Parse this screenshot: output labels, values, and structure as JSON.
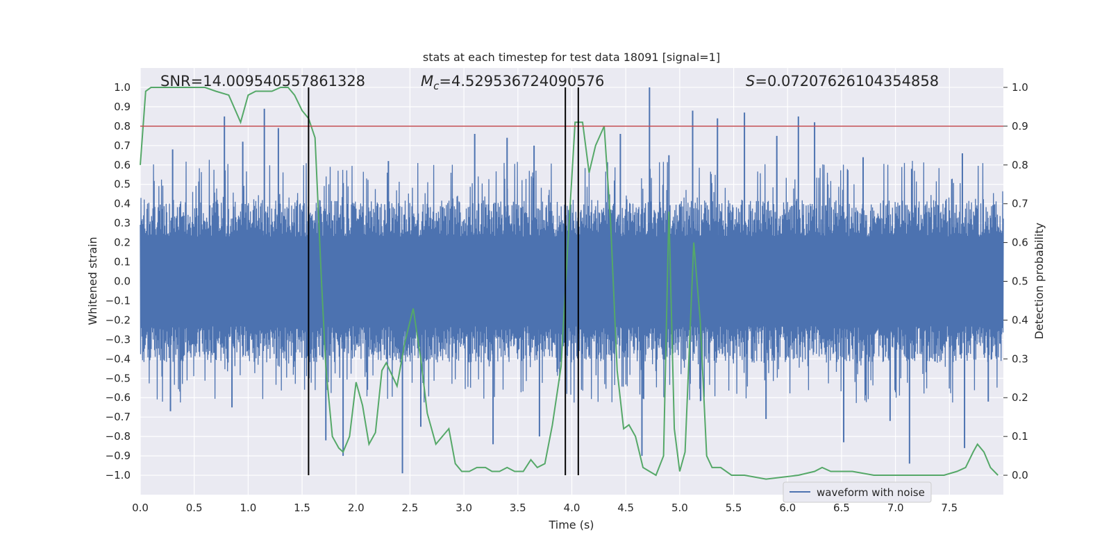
{
  "chart_data": {
    "type": "line",
    "title": "stats at each timestep for test data 18091 [signal=1]",
    "xlabel": "Time (s)",
    "ylabel": "Whitened strain",
    "y2label": "Detection probability",
    "xlim": [
      0.0,
      8.0
    ],
    "ylim": [
      -1.1,
      1.1
    ],
    "y2lim": [
      -0.05,
      1.05
    ],
    "xticks": [
      "0.0",
      "0.5",
      "1.0",
      "1.5",
      "2.0",
      "2.5",
      "3.0",
      "3.5",
      "4.0",
      "4.5",
      "5.0",
      "5.5",
      "6.0",
      "6.5",
      "7.0",
      "7.5"
    ],
    "yticks": [
      "1.0",
      "0.9",
      "0.8",
      "0.7",
      "0.6",
      "0.5",
      "0.4",
      "0.3",
      "0.2",
      "0.1",
      "0.0",
      "−0.1",
      "−0.2",
      "−0.3",
      "−0.4",
      "−0.5",
      "−0.6",
      "−0.7",
      "−0.8",
      "−0.9",
      "−1.0"
    ],
    "y2ticks": [
      "1.0",
      "0.9",
      "0.8",
      "0.7",
      "0.6",
      "0.5",
      "0.4",
      "0.3",
      "0.2",
      "0.1",
      "0.0"
    ],
    "grid": true,
    "legend_position": "lower-right",
    "annotations": {
      "snr": "SNR=14.009540557861328",
      "mc_symbol": "M",
      "mc_sub": "c",
      "mc_value": "=4.529536724090576",
      "s_symbol": "S",
      "s_value": "=0.07207626104354858"
    },
    "threshold": {
      "y2": 0.9,
      "color": "#c44e52"
    },
    "vertical_lines_x": [
      1.56,
      3.94,
      4.06
    ],
    "series": [
      {
        "name": "waveform with noise",
        "color": "#4c72b0",
        "axis": "left",
        "noise_envelope": {
          "typical_abs": 0.42,
          "max_abs": 1.0
        },
        "spikes_up": [
          {
            "x": 0.78,
            "y": 0.85
          },
          {
            "x": 1.15,
            "y": 0.89
          },
          {
            "x": 1.28,
            "y": 0.79
          },
          {
            "x": 3.1,
            "y": 0.76
          },
          {
            "x": 3.4,
            "y": 0.74
          },
          {
            "x": 4.45,
            "y": 0.76
          },
          {
            "x": 4.72,
            "y": 1.0
          },
          {
            "x": 5.12,
            "y": 0.88
          },
          {
            "x": 5.35,
            "y": 0.84
          },
          {
            "x": 5.6,
            "y": 0.87
          },
          {
            "x": 6.1,
            "y": 0.85
          },
          {
            "x": 6.25,
            "y": 0.82
          },
          {
            "x": 0.3,
            "y": 0.68
          },
          {
            "x": 0.95,
            "y": 0.72
          },
          {
            "x": 2.3,
            "y": 0.62
          },
          {
            "x": 3.65,
            "y": 0.7
          },
          {
            "x": 4.9,
            "y": 0.65
          },
          {
            "x": 5.9,
            "y": 0.75
          },
          {
            "x": 6.7,
            "y": 0.64
          },
          {
            "x": 7.15,
            "y": 0.58
          },
          {
            "x": 7.62,
            "y": 0.66
          }
        ],
        "spikes_down": [
          {
            "x": 1.88,
            "y": -0.9
          },
          {
            "x": 2.43,
            "y": -0.99
          },
          {
            "x": 2.6,
            "y": -0.75
          },
          {
            "x": 3.27,
            "y": -0.84
          },
          {
            "x": 3.7,
            "y": -0.8
          },
          {
            "x": 4.65,
            "y": -0.9
          },
          {
            "x": 6.52,
            "y": -0.83
          },
          {
            "x": 7.13,
            "y": -0.94
          },
          {
            "x": 7.64,
            "y": -0.86
          },
          {
            "x": 0.28,
            "y": -0.67
          },
          {
            "x": 0.85,
            "y": -0.65
          },
          {
            "x": 1.72,
            "y": -0.82
          },
          {
            "x": 5.8,
            "y": -0.71
          },
          {
            "x": 6.95,
            "y": -0.72
          },
          {
            "x": 7.86,
            "y": -0.62
          }
        ]
      },
      {
        "name": "detection probability",
        "color": "#55a868",
        "axis": "right",
        "points": [
          [
            0.0,
            0.8
          ],
          [
            0.05,
            0.99
          ],
          [
            0.1,
            1.0
          ],
          [
            0.2,
            1.0
          ],
          [
            0.4,
            1.0
          ],
          [
            0.6,
            1.0
          ],
          [
            0.7,
            0.99
          ],
          [
            0.82,
            0.98
          ],
          [
            0.93,
            0.91
          ],
          [
            1.0,
            0.98
          ],
          [
            1.07,
            0.99
          ],
          [
            1.15,
            0.99
          ],
          [
            1.22,
            0.99
          ],
          [
            1.3,
            1.0
          ],
          [
            1.37,
            1.0
          ],
          [
            1.43,
            0.98
          ],
          [
            1.5,
            0.94
          ],
          [
            1.56,
            0.92
          ],
          [
            1.62,
            0.87
          ],
          [
            1.68,
            0.5
          ],
          [
            1.72,
            0.28
          ],
          [
            1.78,
            0.1
          ],
          [
            1.84,
            0.07
          ],
          [
            1.88,
            0.06
          ],
          [
            1.94,
            0.1
          ],
          [
            2.0,
            0.24
          ],
          [
            2.06,
            0.18
          ],
          [
            2.12,
            0.08
          ],
          [
            2.18,
            0.11
          ],
          [
            2.24,
            0.27
          ],
          [
            2.28,
            0.29
          ],
          [
            2.38,
            0.23
          ],
          [
            2.45,
            0.34
          ],
          [
            2.53,
            0.43
          ],
          [
            2.6,
            0.3
          ],
          [
            2.66,
            0.16
          ],
          [
            2.74,
            0.08
          ],
          [
            2.8,
            0.1
          ],
          [
            2.86,
            0.12
          ],
          [
            2.92,
            0.03
          ],
          [
            2.98,
            0.01
          ],
          [
            3.05,
            0.01
          ],
          [
            3.12,
            0.02
          ],
          [
            3.2,
            0.02
          ],
          [
            3.26,
            0.01
          ],
          [
            3.33,
            0.01
          ],
          [
            3.4,
            0.02
          ],
          [
            3.47,
            0.01
          ],
          [
            3.55,
            0.01
          ],
          [
            3.62,
            0.04
          ],
          [
            3.68,
            0.02
          ],
          [
            3.75,
            0.03
          ],
          [
            3.82,
            0.13
          ],
          [
            3.9,
            0.28
          ],
          [
            3.96,
            0.58
          ],
          [
            4.03,
            0.91
          ],
          [
            4.1,
            0.91
          ],
          [
            4.16,
            0.78
          ],
          [
            4.22,
            0.85
          ],
          [
            4.3,
            0.9
          ],
          [
            4.36,
            0.65
          ],
          [
            4.42,
            0.27
          ],
          [
            4.48,
            0.12
          ],
          [
            4.53,
            0.13
          ],
          [
            4.59,
            0.1
          ],
          [
            4.66,
            0.02
          ],
          [
            4.72,
            0.01
          ],
          [
            4.78,
            0.0
          ],
          [
            4.85,
            0.05
          ],
          [
            4.9,
            0.68
          ],
          [
            4.95,
            0.12
          ],
          [
            5.0,
            0.01
          ],
          [
            5.05,
            0.06
          ],
          [
            5.13,
            0.6
          ],
          [
            5.19,
            0.4
          ],
          [
            5.25,
            0.05
          ],
          [
            5.3,
            0.02
          ],
          [
            5.38,
            0.02
          ],
          [
            5.48,
            0.0
          ],
          [
            5.6,
            0.0
          ],
          [
            5.8,
            -0.01
          ],
          [
            6.1,
            0.0
          ],
          [
            6.25,
            0.01
          ],
          [
            6.32,
            0.02
          ],
          [
            6.4,
            0.01
          ],
          [
            6.6,
            0.01
          ],
          [
            6.8,
            0.0
          ],
          [
            7.0,
            0.0
          ],
          [
            7.2,
            0.0
          ],
          [
            7.45,
            0.0
          ],
          [
            7.57,
            0.01
          ],
          [
            7.65,
            0.02
          ],
          [
            7.72,
            0.06
          ],
          [
            7.76,
            0.08
          ],
          [
            7.82,
            0.06
          ],
          [
            7.88,
            0.02
          ],
          [
            7.95,
            0.0
          ]
        ]
      }
    ]
  }
}
